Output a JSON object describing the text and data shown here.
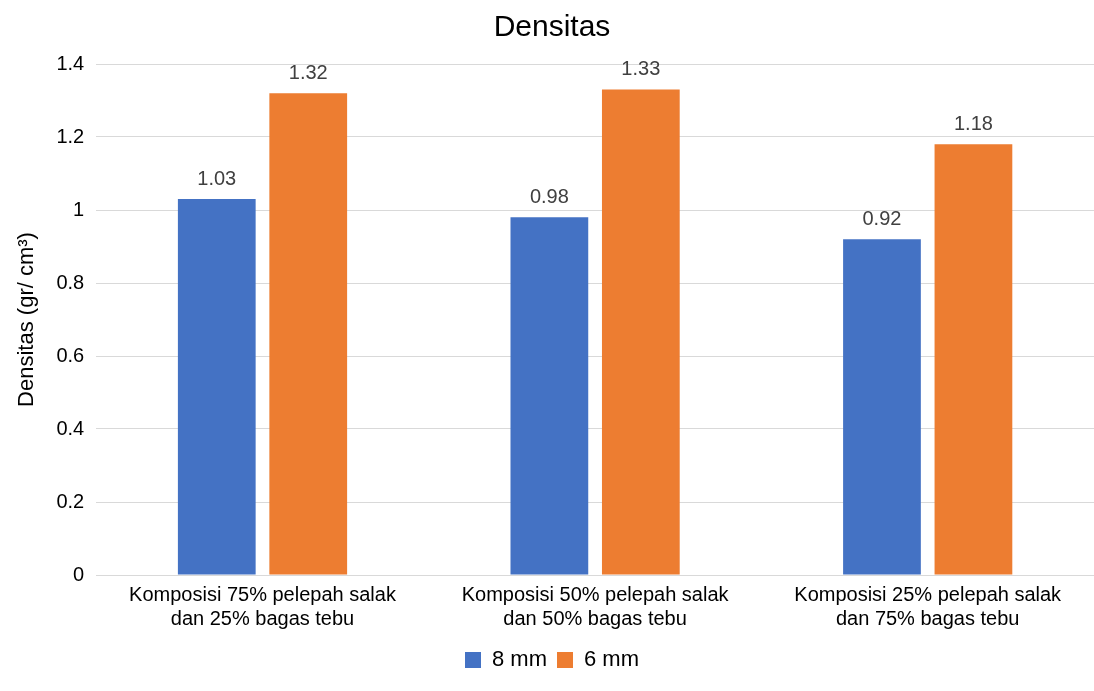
{
  "chart_data": {
    "type": "bar",
    "title": "Densitas",
    "ylabel": "Densitas (gr/ cm³)",
    "categories": [
      "Komposisi 75% pelepah salak dan 25% bagas tebu",
      "Komposisi 50% pelepah salak dan 50% bagas tebu",
      "Komposisi 25% pelepah salak dan 75% bagas tebu"
    ],
    "series": [
      {
        "name": "8 mm",
        "color": "#4472c4",
        "values": [
          1.03,
          0.98,
          0.92
        ]
      },
      {
        "name": "6 mm",
        "color": "#ed7d31",
        "values": [
          1.32,
          1.33,
          1.18
        ]
      }
    ],
    "ylim": [
      0,
      1.4
    ],
    "yticks": [
      0,
      0.2,
      0.4,
      0.6,
      0.8,
      1,
      1.2,
      1.4
    ],
    "grid": "y",
    "legend": "bottom",
    "data_labels": true
  }
}
